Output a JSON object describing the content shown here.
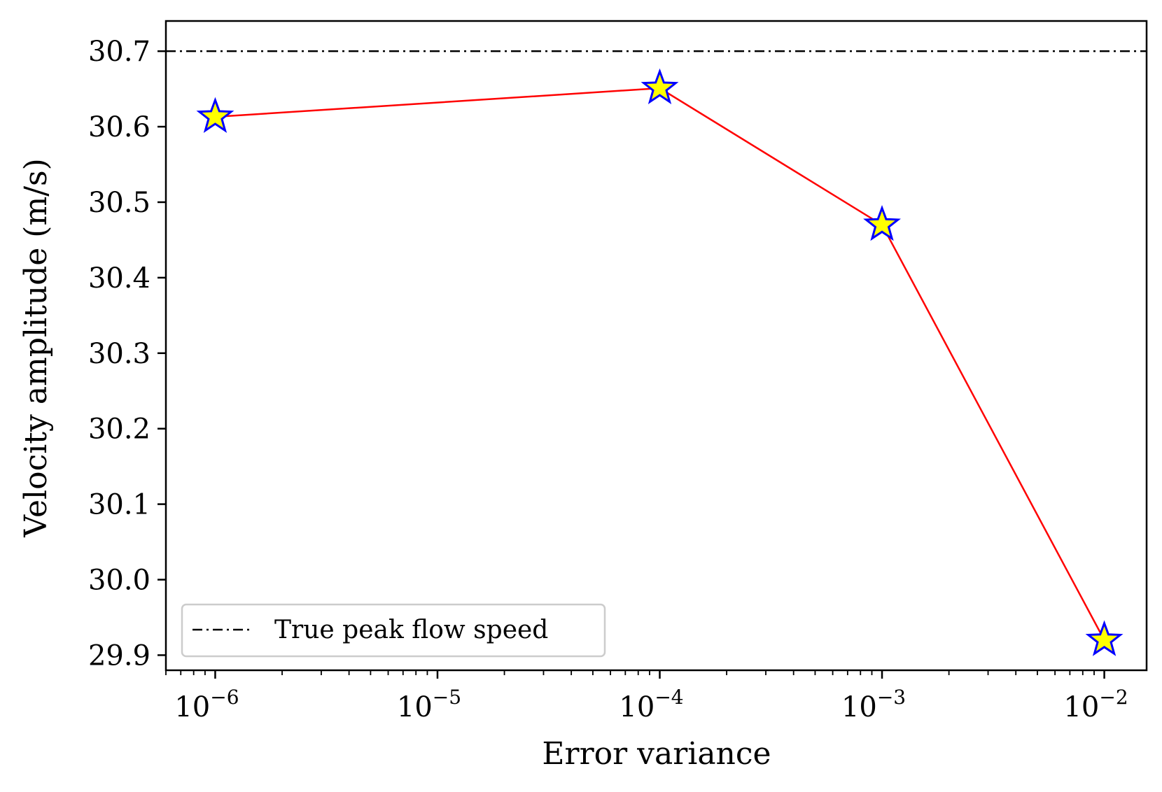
{
  "chart_data": {
    "type": "line",
    "title": "",
    "xlabel": "Error variance",
    "ylabel": "Velocity amplitude (m/s)",
    "xscale": "log",
    "xlim": [
      6e-07,
      0.0155
    ],
    "ylim": [
      29.88,
      30.74
    ],
    "x_ticks": [
      {
        "value": 1e-06,
        "base": "10",
        "exp": "−6"
      },
      {
        "value": 1e-05,
        "base": "10",
        "exp": "−5"
      },
      {
        "value": 0.0001,
        "base": "10",
        "exp": "−4"
      },
      {
        "value": 0.001,
        "base": "10",
        "exp": "−3"
      },
      {
        "value": 0.01,
        "base": "10",
        "exp": "−2"
      }
    ],
    "y_ticks": [
      {
        "value": 29.9,
        "label": "29.9"
      },
      {
        "value": 30.0,
        "label": "30.0"
      },
      {
        "value": 30.1,
        "label": "30.1"
      },
      {
        "value": 30.2,
        "label": "30.2"
      },
      {
        "value": 30.3,
        "label": "30.3"
      },
      {
        "value": 30.4,
        "label": "30.4"
      },
      {
        "value": 30.5,
        "label": "30.5"
      },
      {
        "value": 30.6,
        "label": "30.6"
      },
      {
        "value": 30.7,
        "label": "30.7"
      }
    ],
    "series": [
      {
        "name": "Velocity amplitude",
        "x": [
          1e-06,
          0.0001,
          0.001,
          0.01
        ],
        "y": [
          30.613,
          30.651,
          30.47,
          29.92
        ],
        "line_color": "#ff0000",
        "marker": "star",
        "marker_fill": "#ffff00",
        "marker_edge": "#0000ff"
      }
    ],
    "reference_line": {
      "name": "True peak flow speed",
      "y": 30.7,
      "style": "dash-dot",
      "color": "#000000"
    },
    "legend": {
      "placement": "lower-left",
      "entries": [
        "True peak flow speed"
      ]
    },
    "grid": false
  }
}
